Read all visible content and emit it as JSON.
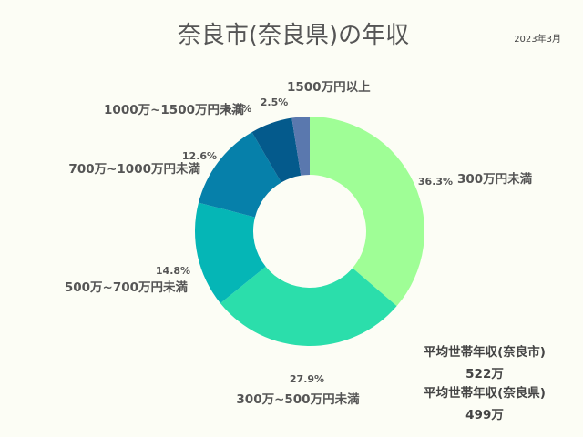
{
  "title": "奈良市(奈良県)の年収",
  "date": "2023年3月",
  "chart_data": {
    "type": "pie",
    "categories": [
      "300万円未満",
      "300万~500万円未満",
      "500万~700万円未満",
      "700万~1000万円未満",
      "1000万~1500万円未満",
      "1500万円以上"
    ],
    "values": [
      36.3,
      27.9,
      14.8,
      12.6,
      5.9,
      2.5
    ],
    "value_labels": [
      "36.3%",
      "27.9%",
      "14.8%",
      "12.6%",
      "5.9%",
      "2.5%"
    ],
    "colors": [
      "#9ffe96",
      "#2bdeab",
      "#05b6b6",
      "#0680aa",
      "#045a8c",
      "#5a78ae"
    ],
    "donut": true
  },
  "stats": {
    "city_label": "平均世帯年収(奈良市)",
    "city_value": "522万",
    "pref_label": "平均世帯年収(奈良県)",
    "pref_value": "499万"
  }
}
